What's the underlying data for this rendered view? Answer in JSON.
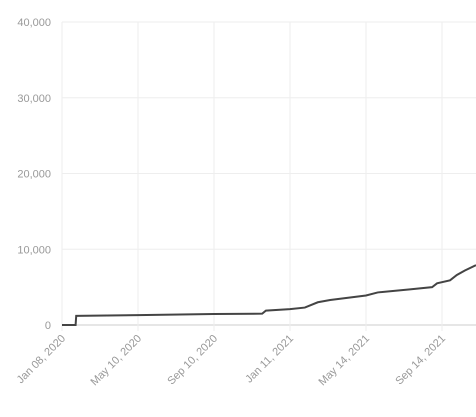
{
  "chart_data": {
    "type": "line",
    "x": [
      "2020-01-08",
      "2020-01-30",
      "2020-01-31",
      "2020-05-10",
      "2020-09-10",
      "2020-11-27",
      "2020-12-03",
      "2021-01-11",
      "2021-02-04",
      "2021-02-25",
      "2021-03-17",
      "2021-05-14",
      "2021-06-02",
      "2021-07-24",
      "2021-08-29",
      "2021-09-06",
      "2021-09-27",
      "2021-10-08",
      "2021-10-21",
      "2021-11-08"
    ],
    "series": [
      {
        "color": "#444444",
        "values": [
          0,
          0,
          1200,
          1300,
          1450,
          1500,
          1900,
          2100,
          2300,
          3000,
          3300,
          3900,
          4300,
          4700,
          5000,
          5500,
          5900,
          6600,
          7200,
          7900
        ]
      }
    ],
    "xlim": [
      "2020-01-08",
      "2021-11-08"
    ],
    "xticks": [
      {
        "value": "2020-01-08",
        "label": "Jan 08, 2020"
      },
      {
        "value": "2020-05-10",
        "label": "May 10, 2020"
      },
      {
        "value": "2020-09-10",
        "label": "Sep 10, 2020"
      },
      {
        "value": "2021-01-11",
        "label": "Jan 11, 2021"
      },
      {
        "value": "2021-05-14",
        "label": "May 14, 2021"
      },
      {
        "value": "2021-09-14",
        "label": "Sep 14, 2021"
      }
    ],
    "ylim": [
      0,
      40000
    ],
    "yticks": [
      0,
      {
        "value": 10000,
        "label": "10,000"
      },
      {
        "value": 20000,
        "label": "20,000"
      },
      {
        "value": 30000,
        "label": "30,000"
      },
      {
        "value": 40000,
        "label": "40,000"
      }
    ],
    "grid": true
  }
}
